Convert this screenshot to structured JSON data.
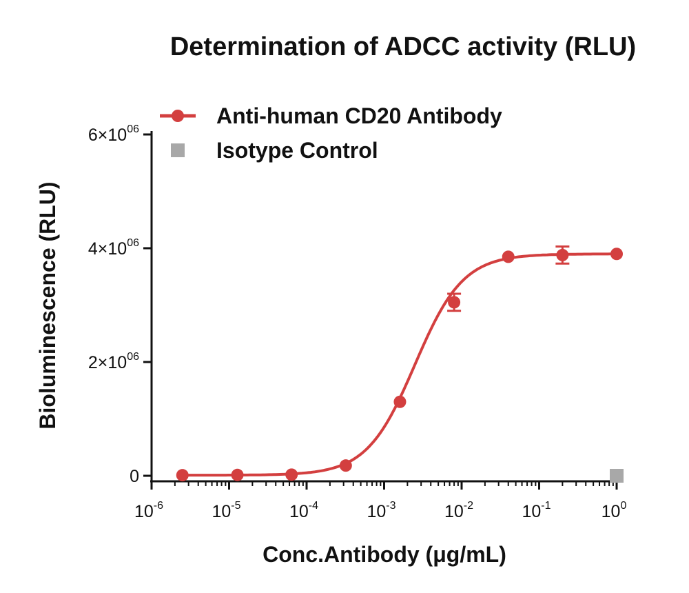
{
  "chart_data": {
    "type": "line",
    "title": "Determination of  ADCC activity (RLU)",
    "xlabel": "Conc.Antibody (μg/mL)",
    "ylabel": "Bioluminescence (RLU)",
    "x_scale": "log",
    "xlim": [
      1e-06,
      1
    ],
    "ylim": [
      0,
      6000000
    ],
    "x_ticks": [
      {
        "base": "10",
        "exp": "-6"
      },
      {
        "base": "10",
        "exp": "-5"
      },
      {
        "base": "10",
        "exp": "-4"
      },
      {
        "base": "10",
        "exp": "-3"
      },
      {
        "base": "10",
        "exp": "-2"
      },
      {
        "base": "10",
        "exp": "-1"
      },
      {
        "base": "10",
        "exp": "0"
      }
    ],
    "y_ticks": [
      {
        "value": 0,
        "label": "0",
        "exp": ""
      },
      {
        "value": 2000000,
        "label": "2×10",
        "exp": "06"
      },
      {
        "value": 4000000,
        "label": "4×10",
        "exp": "06"
      },
      {
        "value": 6000000,
        "label": "6×10",
        "exp": "06"
      }
    ],
    "legend_position": "top-left",
    "series": [
      {
        "name": "Anti-human CD20 Antibody",
        "color": "#d33f3f",
        "marker": "circle",
        "x": [
          2.5e-06,
          1.28e-05,
          6.4e-05,
          0.00032,
          0.0016,
          0.008,
          0.04,
          0.2,
          1.0
        ],
        "y": [
          10000,
          15000,
          20000,
          180000,
          1300000,
          3050000,
          3850000,
          3880000,
          3900000
        ],
        "err": [
          0,
          0,
          0,
          0,
          0,
          150000,
          0,
          150000,
          0
        ],
        "fit": {
          "bottom": 10000,
          "top": 3900000,
          "ec50": 0.0025,
          "hill": 1.4
        }
      },
      {
        "name": "Isotype Control",
        "color": "#a8a8a8",
        "marker": "square",
        "x": [
          1.0
        ],
        "y": [
          0
        ],
        "err": [
          0
        ]
      }
    ]
  }
}
